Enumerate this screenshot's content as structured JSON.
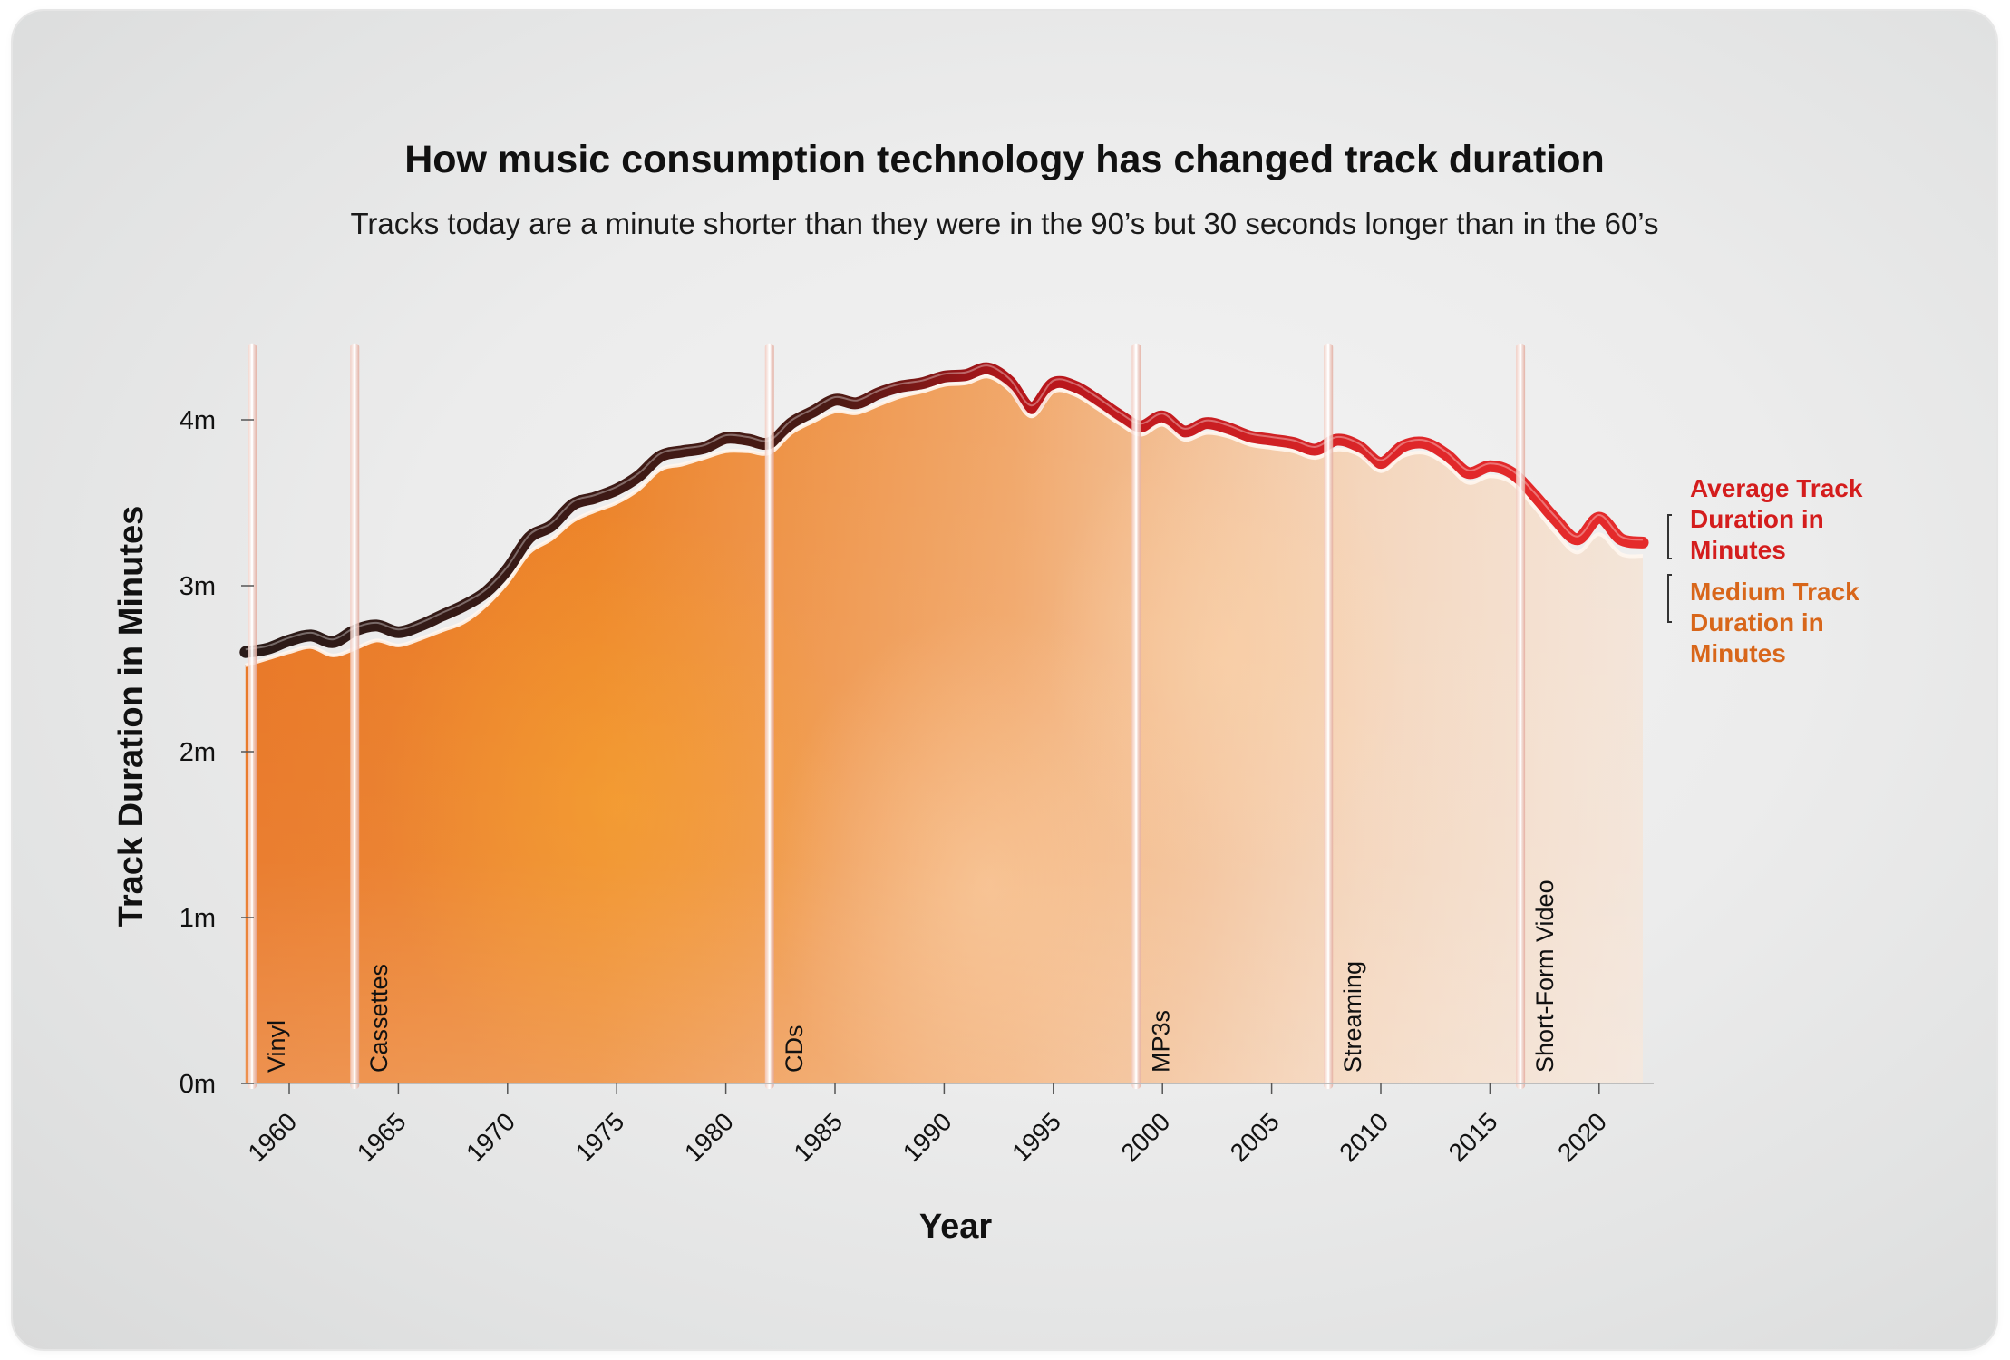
{
  "header": {
    "title": "How music consumption technology has changed track duration",
    "subtitle": "Tracks today are a minute shorter than they were in the 90’s but 30 seconds longer than in the 60’s"
  },
  "colors": {
    "average": "#d41d1d",
    "average_dark": "#2a1b18",
    "median": "#e07a1e",
    "median_label": "#d8661a",
    "text": "#111111"
  },
  "chart_data": {
    "type": "area",
    "title": "How music consumption technology has changed track duration",
    "subtitle": "Tracks today are a minute shorter than they were in the 90’s but 30 seconds longer than in the 60’s",
    "xlabel": "Year",
    "ylabel": "Track Duration in Minutes",
    "xlim": [
      1958,
      2022.5
    ],
    "ylim": [
      0,
      4.5
    ],
    "x_ticks": [
      1960,
      1965,
      1970,
      1975,
      1980,
      1985,
      1990,
      1995,
      2000,
      2005,
      2010,
      2015,
      2020
    ],
    "x_tick_labels": [
      "1960",
      "1965",
      "1970",
      "1975",
      "1980",
      "1985",
      "1990",
      "1995",
      "2000",
      "2005",
      "2010",
      "2015",
      "2020"
    ],
    "y_ticks": [
      0,
      1,
      2,
      3,
      4
    ],
    "y_tick_labels": [
      "0m",
      "1m",
      "2m",
      "3m",
      "4m"
    ],
    "grid": false,
    "legend_placement": "right",
    "x": [
      1958,
      1959,
      1960,
      1961,
      1962,
      1963,
      1964,
      1965,
      1966,
      1967,
      1968,
      1969,
      1970,
      1971,
      1972,
      1973,
      1974,
      1975,
      1976,
      1977,
      1978,
      1979,
      1980,
      1981,
      1982,
      1983,
      1984,
      1985,
      1986,
      1987,
      1988,
      1989,
      1990,
      1991,
      1992,
      1993,
      1994,
      1995,
      1996,
      1997,
      1998,
      1999,
      2000,
      2001,
      2002,
      2003,
      2004,
      2005,
      2006,
      2007,
      2008,
      2009,
      2010,
      2011,
      2012,
      2013,
      2014,
      2015,
      2016,
      2017,
      2018,
      2019,
      2020,
      2021,
      2022
    ],
    "series": [
      {
        "name": "Average Track Duration in Minutes",
        "values": [
          2.6,
          2.62,
          2.67,
          2.7,
          2.66,
          2.73,
          2.76,
          2.72,
          2.76,
          2.82,
          2.88,
          2.96,
          3.1,
          3.29,
          3.36,
          3.49,
          3.53,
          3.58,
          3.66,
          3.78,
          3.81,
          3.83,
          3.89,
          3.88,
          3.86,
          3.98,
          4.05,
          4.12,
          4.1,
          4.16,
          4.2,
          4.22,
          4.26,
          4.27,
          4.31,
          4.23,
          4.07,
          4.22,
          4.2,
          4.12,
          4.03,
          3.96,
          4.02,
          3.93,
          3.98,
          3.95,
          3.9,
          3.88,
          3.86,
          3.82,
          3.88,
          3.84,
          3.74,
          3.84,
          3.86,
          3.79,
          3.68,
          3.72,
          3.68,
          3.55,
          3.4,
          3.28,
          3.41,
          3.28,
          3.26
        ]
      },
      {
        "name": "Medium Track Duration in Minutes",
        "values": [
          2.52,
          2.56,
          2.6,
          2.63,
          2.58,
          2.62,
          2.67,
          2.64,
          2.68,
          2.73,
          2.78,
          2.88,
          3.02,
          3.2,
          3.28,
          3.39,
          3.45,
          3.5,
          3.58,
          3.7,
          3.73,
          3.77,
          3.81,
          3.81,
          3.8,
          3.92,
          3.99,
          4.05,
          4.04,
          4.09,
          4.14,
          4.17,
          4.21,
          4.22,
          4.26,
          4.18,
          4.02,
          4.17,
          4.15,
          4.07,
          3.98,
          3.91,
          3.97,
          3.88,
          3.92,
          3.9,
          3.85,
          3.83,
          3.81,
          3.77,
          3.82,
          3.79,
          3.69,
          3.78,
          3.8,
          3.73,
          3.62,
          3.66,
          3.62,
          3.48,
          3.32,
          3.2,
          3.31,
          3.19,
          3.18
        ]
      }
    ],
    "annotations": [
      {
        "year": 1958.3,
        "label": "Vinyl"
      },
      {
        "year": 1963.0,
        "label": "Cassettes"
      },
      {
        "year": 1982.0,
        "label": "CDs"
      },
      {
        "year": 1998.8,
        "label": "MP3s"
      },
      {
        "year": 2007.6,
        "label": "Streaming"
      },
      {
        "year": 2016.4,
        "label": "Short-Form Video"
      }
    ]
  }
}
